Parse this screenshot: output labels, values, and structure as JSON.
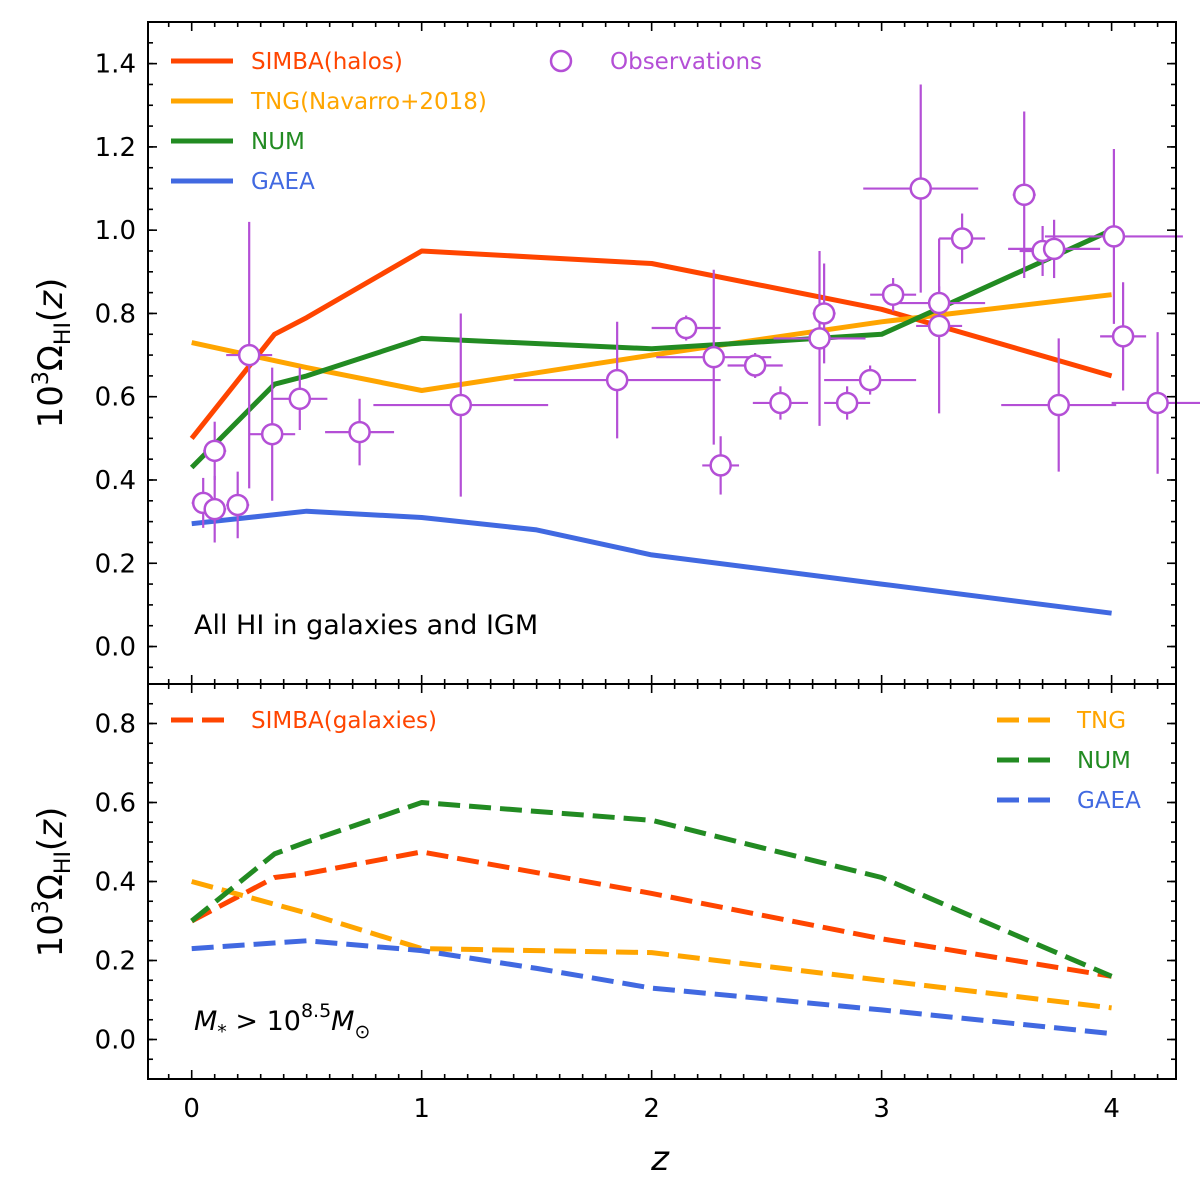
{
  "chart_data": [
    {
      "type": "line",
      "panel": "top",
      "ylabel": "10^3 Ω_HI(z)",
      "xlabel": "",
      "xlim": [
        -0.19,
        4.28
      ],
      "ylim": [
        -0.09,
        1.5
      ],
      "yticks": [
        "0.0",
        "0.2",
        "0.4",
        "0.6",
        "0.8",
        "1.0",
        "1.2",
        "1.4"
      ],
      "annotation": "All HI in galaxies and IGM",
      "legend_position": "top-left",
      "series": [
        {
          "name": "SIMBA(halos)",
          "color": "#ff4500",
          "style": "solid",
          "x": [
            0,
            0.36,
            0.5,
            1,
            2,
            3,
            4
          ],
          "y": [
            0.5,
            0.75,
            0.79,
            0.95,
            0.92,
            0.81,
            0.65
          ]
        },
        {
          "name": "TNG(Navarro+2018)",
          "color": "#ffa500",
          "style": "solid",
          "x": [
            0,
            0.5,
            1,
            2,
            3,
            4
          ],
          "y": [
            0.73,
            0.67,
            0.615,
            0.7,
            0.78,
            0.845
          ]
        },
        {
          "name": "NUM",
          "color": "#228b22",
          "style": "solid",
          "x": [
            0,
            0.36,
            0.5,
            1,
            2,
            3,
            4
          ],
          "y": [
            0.43,
            0.63,
            0.65,
            0.74,
            0.715,
            0.75,
            1.0
          ]
        },
        {
          "name": "GAEA",
          "color": "#4169e1",
          "style": "solid",
          "x": [
            0,
            0.5,
            1,
            1.5,
            2,
            3,
            4
          ],
          "y": [
            0.295,
            0.325,
            0.31,
            0.28,
            0.22,
            0.15,
            0.08
          ]
        }
      ],
      "observations": {
        "name": "Observations",
        "color": "#b44fd6",
        "points": [
          {
            "x": 0.05,
            "y": 0.345,
            "xerr": 0.05,
            "yerr": 0.06
          },
          {
            "x": 0.1,
            "y": 0.47,
            "xerr": 0.05,
            "yerr": 0.07
          },
          {
            "x": 0.1,
            "y": 0.33,
            "xerr": 0.05,
            "yerr": 0.08
          },
          {
            "x": 0.2,
            "y": 0.34,
            "xerr": 0.05,
            "yerr": 0.08
          },
          {
            "x": 0.25,
            "y": 0.7,
            "xerr": 0.1,
            "yerr": 0.32
          },
          {
            "x": 0.35,
            "y": 0.51,
            "xerr": 0.1,
            "yerr": 0.16
          },
          {
            "x": 0.47,
            "y": 0.595,
            "xerr": 0.12,
            "yerr": 0.075
          },
          {
            "x": 0.73,
            "y": 0.515,
            "xerr": 0.15,
            "yerr": 0.08
          },
          {
            "x": 1.17,
            "y": 0.58,
            "xerr": 0.38,
            "yerr": 0.22
          },
          {
            "x": 1.85,
            "y": 0.64,
            "xerr": 0.45,
            "yerr": 0.14
          },
          {
            "x": 2.15,
            "y": 0.765,
            "xerr": 0.15,
            "yerr": 0.03
          },
          {
            "x": 2.27,
            "y": 0.695,
            "xerr": 0.25,
            "yerr": 0.21
          },
          {
            "x": 2.3,
            "y": 0.435,
            "xerr": 0.08,
            "yerr": 0.07
          },
          {
            "x": 2.45,
            "y": 0.675,
            "xerr": 0.12,
            "yerr": 0.03
          },
          {
            "x": 2.56,
            "y": 0.585,
            "xerr": 0.12,
            "yerr": 0.04
          },
          {
            "x": 2.73,
            "y": 0.74,
            "xerr": 0.2,
            "yerr": 0.21
          },
          {
            "x": 2.75,
            "y": 0.8,
            "xerr": 0.05,
            "yerr": 0.12
          },
          {
            "x": 2.85,
            "y": 0.585,
            "xerr": 0.1,
            "yerr": 0.04
          },
          {
            "x": 2.95,
            "y": 0.64,
            "xerr": 0.2,
            "yerr": 0.035
          },
          {
            "x": 3.05,
            "y": 0.845,
            "xerr": 0.1,
            "yerr": 0.04
          },
          {
            "x": 3.17,
            "y": 1.1,
            "xerr": 0.25,
            "yerr": 0.25
          },
          {
            "x": 3.25,
            "y": 0.825,
            "xerr": 0.2,
            "yerr": 0.04
          },
          {
            "x": 3.25,
            "y": 0.77,
            "xerr": 0.1,
            "yerr": 0.21
          },
          {
            "x": 3.35,
            "y": 0.98,
            "xerr": 0.1,
            "yerr": 0.06
          },
          {
            "x": 3.62,
            "y": 1.085,
            "xerr": 0.05,
            "yerr": 0.2
          },
          {
            "x": 3.7,
            "y": 0.95,
            "xerr": 0.1,
            "yerr": 0.06
          },
          {
            "x": 3.75,
            "y": 0.955,
            "xerr": 0.2,
            "yerr": 0.07
          },
          {
            "x": 3.77,
            "y": 0.58,
            "xerr": 0.25,
            "yerr": 0.16
          },
          {
            "x": 4.01,
            "y": 0.985,
            "xerr": 0.3,
            "yerr": 0.21
          },
          {
            "x": 4.05,
            "y": 0.745,
            "xerr": 0.1,
            "yerr": 0.13
          },
          {
            "x": 4.2,
            "y": 0.585,
            "xerr": 0.2,
            "yerr": 0.17
          }
        ]
      }
    },
    {
      "type": "line",
      "panel": "bottom",
      "ylabel": "10^3 Ω_HI(z)",
      "xlabel": "z",
      "xlim": [
        -0.19,
        4.28
      ],
      "ylim": [
        -0.1,
        0.9
      ],
      "xticks": [
        "0",
        "1",
        "2",
        "3",
        "4"
      ],
      "yticks": [
        "0.0",
        "0.2",
        "0.4",
        "0.6",
        "0.8"
      ],
      "annotation": "M* > 10^8.5 M⊙",
      "series": [
        {
          "name": "SIMBA(galaxies)",
          "color": "#ff4500",
          "style": "dashed",
          "x": [
            0,
            0.36,
            0.5,
            1,
            2,
            3,
            4
          ],
          "y": [
            0.3,
            0.41,
            0.42,
            0.475,
            0.37,
            0.255,
            0.16
          ]
        },
        {
          "name": "TNG",
          "color": "#ffa500",
          "style": "dashed",
          "x": [
            0,
            0.5,
            1,
            2,
            3,
            4
          ],
          "y": [
            0.4,
            0.32,
            0.23,
            0.22,
            0.15,
            0.08
          ]
        },
        {
          "name": "NUM",
          "color": "#228b22",
          "style": "dashed",
          "x": [
            0,
            0.36,
            0.5,
            1,
            2,
            3,
            4
          ],
          "y": [
            0.3,
            0.47,
            0.5,
            0.6,
            0.555,
            0.41,
            0.16
          ]
        },
        {
          "name": "GAEA",
          "color": "#4169e1",
          "style": "dashed",
          "x": [
            0,
            0.5,
            1,
            1.5,
            2,
            3,
            4
          ],
          "y": [
            0.23,
            0.25,
            0.225,
            0.18,
            0.13,
            0.075,
            0.015
          ]
        }
      ]
    }
  ]
}
